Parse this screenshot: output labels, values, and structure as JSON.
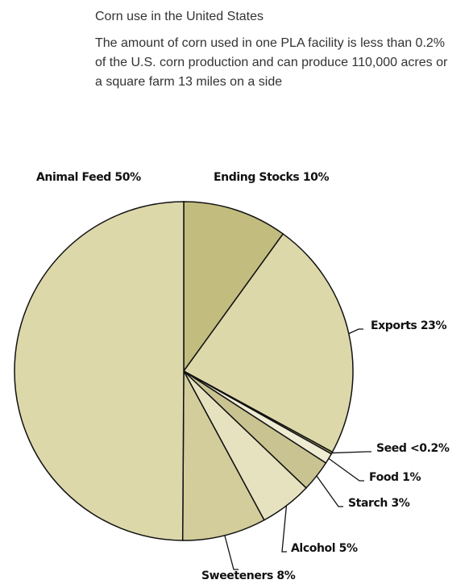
{
  "chart_data": {
    "type": "pie",
    "title": "Corn use in the United States",
    "subtitle": "The amount of corn used in one PLA facility is less than 0.2% of the U.S. corn production and can produce 110,000 acres or a square farm 13 miles on a side",
    "slices": [
      {
        "name": "Ending Stocks",
        "label": "Ending Stocks 10%",
        "value": 10,
        "color": "#c2bd7f"
      },
      {
        "name": "Exports",
        "label": "Exports 23%",
        "value": 23,
        "color": "#ddd8aa"
      },
      {
        "name": "Seed",
        "label": "Seed <0.2%",
        "value": 0.2,
        "color": "#b9b26a"
      },
      {
        "name": "Food",
        "label": "Food 1%",
        "value": 1,
        "color": "#efecd4"
      },
      {
        "name": "Starch",
        "label": "Starch 3%",
        "value": 3,
        "color": "#c9c391"
      },
      {
        "name": "Alcohol",
        "label": "Alcohol 5%",
        "value": 5,
        "color": "#e6e2c0"
      },
      {
        "name": "Sweeteners",
        "label": "Sweeteners 8%",
        "value": 8,
        "color": "#d3cd9c"
      },
      {
        "name": "Animal Feed",
        "label": "Animal Feed 50%",
        "value": 50,
        "color": "#ddd8aa"
      }
    ]
  }
}
